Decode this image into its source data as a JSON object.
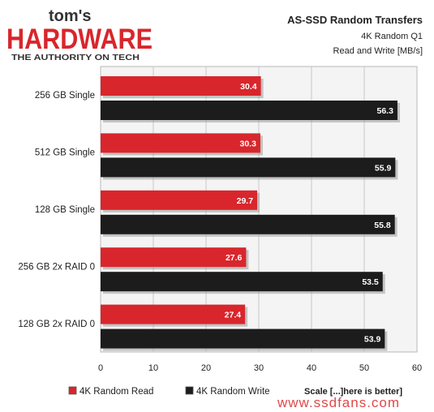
{
  "brand": {
    "line1": "tom's",
    "line2": "HARDWARE",
    "tagline": "THE AUTHORITY ON TECH"
  },
  "header": {
    "title": "AS-SSD Random Transfers",
    "subtitle": "4K Random Q1",
    "units": "Read and Write [MB/s]"
  },
  "footer": {
    "scale_note": "Scale [...]here is better]",
    "watermark": "www.ssdfans.com"
  },
  "colors": {
    "read": "#d8262c",
    "write": "#1c1c1c",
    "plot_bg": "#f4f4f4",
    "grid": "#c8c8c8",
    "brand_red": "#d8262c"
  },
  "chart_data": {
    "type": "bar",
    "orientation": "horizontal",
    "title": "AS-SSD Random Transfers",
    "subtitle": "4K Random Q1",
    "units": "Read and Write [MB/s]",
    "categories": [
      "256 GB Single",
      "512 GB Single",
      "128 GB Single",
      "256 GB 2x RAID 0",
      "128 GB 2x RAID 0"
    ],
    "series": [
      {
        "name": "4K Random Read",
        "values": [
          30.4,
          30.3,
          29.7,
          27.6,
          27.4
        ]
      },
      {
        "name": "4K Random Write",
        "values": [
          56.3,
          55.9,
          55.8,
          53.5,
          53.9
        ]
      }
    ],
    "xlim": [
      0,
      60
    ],
    "xticks": [
      0,
      10,
      20,
      30,
      40,
      50,
      60
    ],
    "grid": true,
    "legend_position": "bottom-left"
  }
}
